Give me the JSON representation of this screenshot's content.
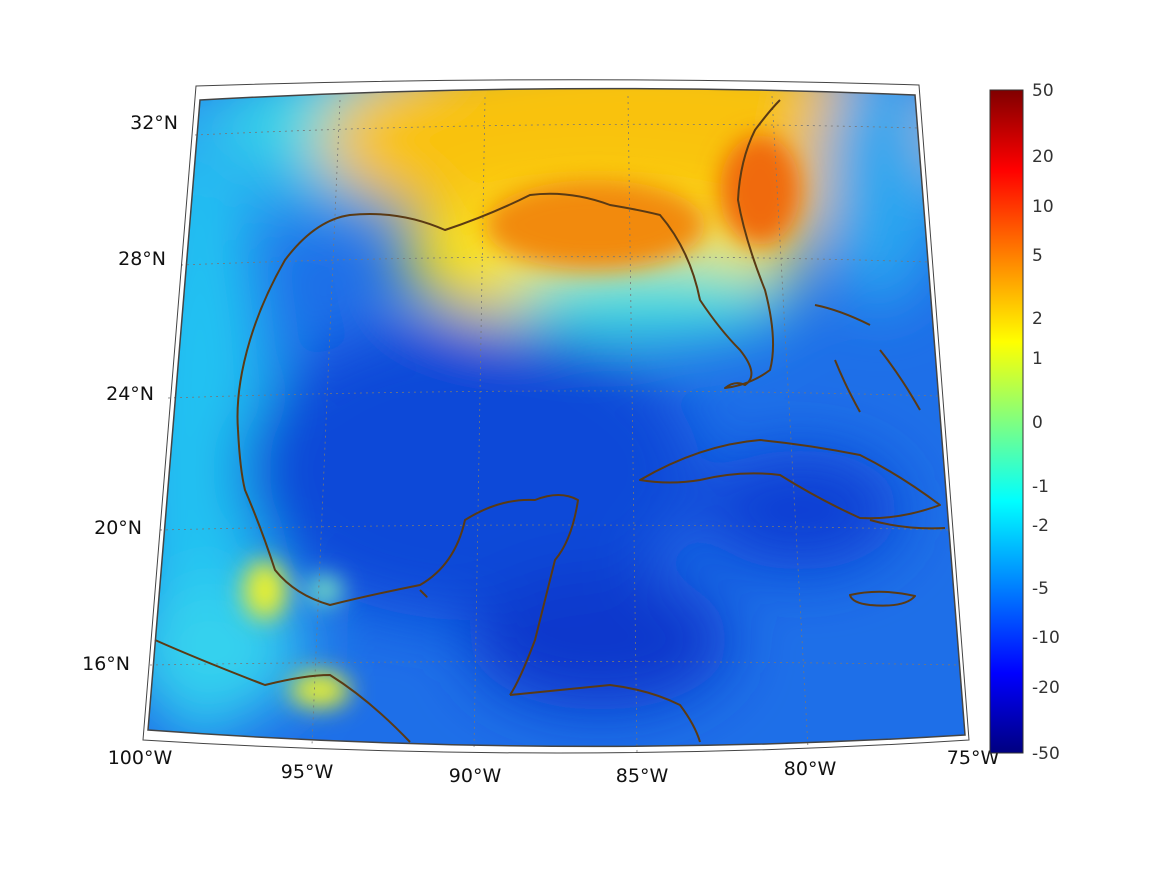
{
  "map": {
    "lat_labels": [
      "32°N",
      "28°N",
      "24°N",
      "20°N",
      "16°N"
    ],
    "lon_labels": [
      "100°W",
      "95°W",
      "90°W",
      "85°W",
      "80°W",
      "75°W"
    ],
    "colors": {
      "coast": "#5a3a14",
      "grid": "#777777",
      "frame": "#444444"
    }
  },
  "colorbar": {
    "tick_labels": [
      "50",
      "20",
      "10",
      "5",
      "2",
      "1",
      "0",
      "-1",
      "-2",
      "-5",
      "-10",
      "-20",
      "-50"
    ],
    "colors": [
      "#800000",
      "#ff0000",
      "#ff8000",
      "#ffff00",
      "#80ff80",
      "#00ffff",
      "#0080ff",
      "#0000ff",
      "#000080"
    ]
  }
}
